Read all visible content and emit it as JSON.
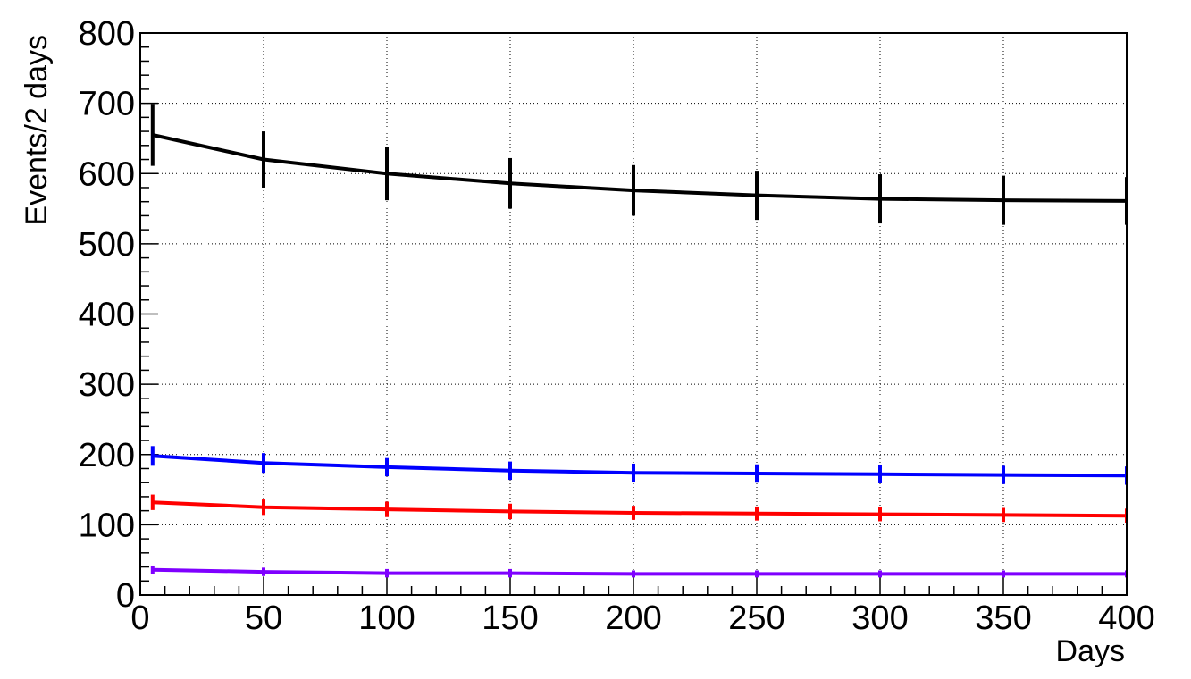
{
  "chart_data": {
    "type": "line",
    "xlabel": "Days",
    "ylabel": "Events/2 days",
    "xlim": [
      0,
      400
    ],
    "ylim": [
      0,
      800
    ],
    "x_ticks": [
      0,
      50,
      100,
      150,
      200,
      250,
      300,
      350,
      400
    ],
    "y_ticks": [
      0,
      100,
      200,
      300,
      400,
      500,
      600,
      700,
      800
    ],
    "grid": true,
    "error_bar_x": [
      5,
      50,
      100,
      150,
      200,
      250,
      300,
      350,
      400
    ],
    "series": [
      {
        "color": "#000000",
        "x": [
          5,
          50,
          100,
          150,
          200,
          250,
          300,
          350,
          400
        ],
        "values": [
          655,
          620,
          600,
          586,
          576,
          569,
          564,
          562,
          561
        ],
        "errors": [
          44,
          40,
          38,
          36,
          36,
          35,
          35,
          35,
          34
        ]
      },
      {
        "color": "#0000ff",
        "x": [
          5,
          50,
          100,
          150,
          200,
          250,
          300,
          350,
          400
        ],
        "values": [
          198,
          188,
          182,
          177,
          174,
          173,
          172,
          171,
          170
        ],
        "errors": [
          14,
          14,
          13,
          13,
          13,
          13,
          13,
          13,
          13
        ]
      },
      {
        "color": "#ff0000",
        "x": [
          5,
          50,
          100,
          150,
          200,
          250,
          300,
          350,
          400
        ],
        "values": [
          132,
          125,
          122,
          119,
          117,
          116,
          115,
          114,
          113
        ],
        "errors": [
          11,
          11,
          11,
          11,
          10,
          10,
          10,
          10,
          10
        ]
      },
      {
        "color": "#7f00ff",
        "x": [
          5,
          50,
          100,
          150,
          200,
          250,
          300,
          350,
          400
        ],
        "values": [
          36,
          33,
          31,
          31,
          30,
          30,
          30,
          30,
          30
        ],
        "errors": [
          6,
          6,
          6,
          6,
          5,
          5,
          5,
          5,
          5
        ]
      }
    ]
  }
}
